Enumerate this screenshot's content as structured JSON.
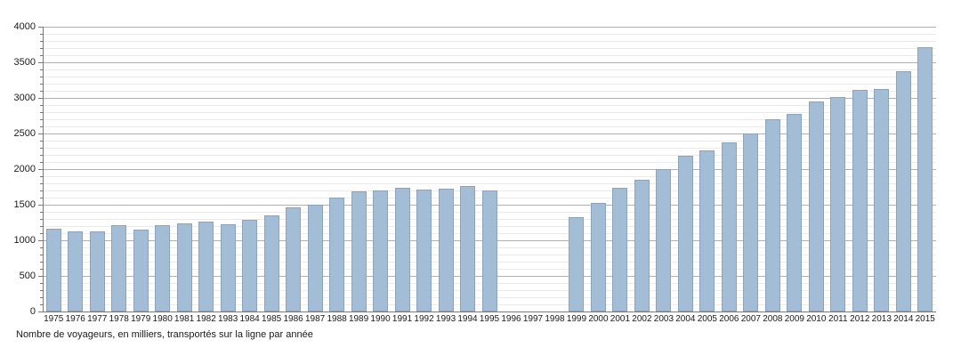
{
  "caption": "Nombre de voyageurs, en milliers, transportés sur la ligne par année",
  "chart_data": {
    "type": "bar",
    "title": "",
    "xlabel": "",
    "ylabel": "",
    "categories": [
      1975,
      1976,
      1977,
      1978,
      1979,
      1980,
      1981,
      1982,
      1983,
      1984,
      1985,
      1986,
      1987,
      1988,
      1989,
      1990,
      1991,
      1992,
      1993,
      1994,
      1995,
      1996,
      1997,
      1998,
      1999,
      2000,
      2001,
      2002,
      2003,
      2004,
      2005,
      2006,
      2007,
      2008,
      2009,
      2010,
      2011,
      2012,
      2013,
      2014,
      2015
    ],
    "values": [
      1160,
      1130,
      1120,
      1210,
      1150,
      1210,
      1240,
      1260,
      1230,
      1290,
      1350,
      1460,
      1500,
      1600,
      1690,
      1700,
      1740,
      1710,
      1720,
      1760,
      1700,
      null,
      null,
      null,
      1330,
      1530,
      1740,
      1850,
      2000,
      2190,
      2260,
      2370,
      2500,
      2700,
      2770,
      2950,
      3010,
      3110,
      3130,
      3370,
      3710
    ],
    "ylim": [
      0,
      4000
    ],
    "y_ticks": [
      0,
      500,
      1000,
      1500,
      2000,
      2500,
      3000,
      3500,
      4000
    ],
    "minor_step": 100,
    "grid": true,
    "legend": "none",
    "bar_color": "#a4bdd7",
    "bar_border_color": "#8ca3ba",
    "major_grid_color": "#b0b0b0",
    "minor_grid_color": "#ebebeb",
    "axis_color": "#7a7a7a",
    "text_color": "#1a1a1a"
  }
}
